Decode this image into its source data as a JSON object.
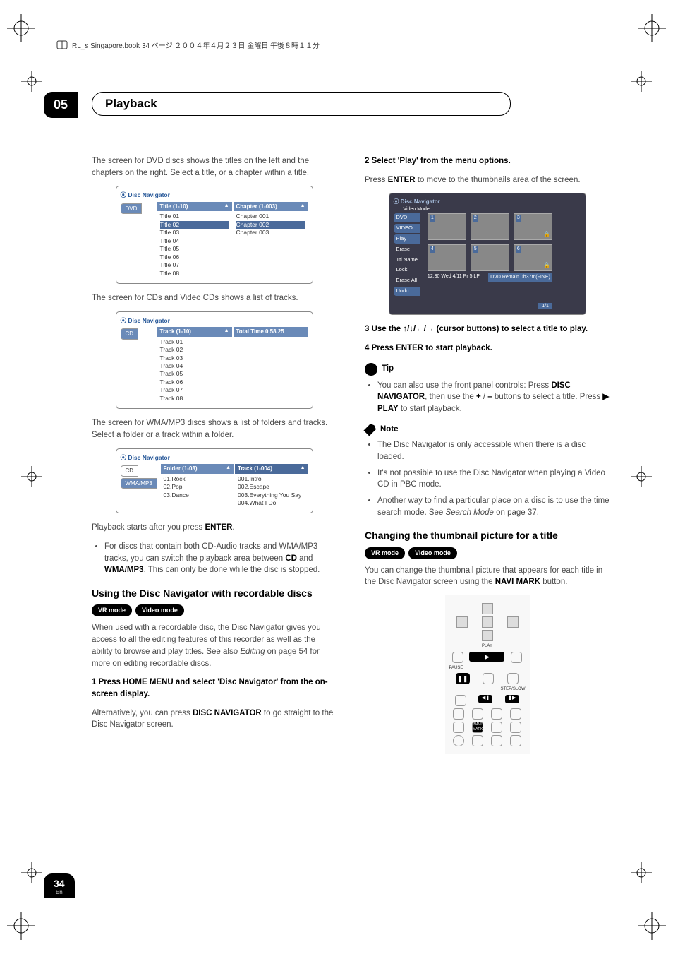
{
  "header": {
    "book_line": "RL_s Singapore.book 34 ページ ２００４年４月２３日 金曜日 午後８時１１分"
  },
  "chapter": {
    "num": "05",
    "title": "Playback"
  },
  "left": {
    "p1": "The screen for DVD discs shows the titles on the left and the chapters on the right. Select a title, or a chapter within a title.",
    "nav_dvd": {
      "label": "Disc Navigator",
      "col1_header": "Title (1-10)",
      "col2_header": "Chapter (1-003)",
      "tab": "DVD",
      "titles": [
        "Title 01",
        "Title 02",
        "Title 03",
        "Title 04",
        "Title 05",
        "Title 06",
        "Title 07",
        "Title 08"
      ],
      "chapters": [
        "Chapter 001",
        "Chapter 002",
        "Chapter 003"
      ]
    },
    "p2": "The screen for CDs and Video CDs shows a list of tracks.",
    "nav_cd": {
      "label": "Disc Navigator",
      "col1_header": "Track (1-10)",
      "col2_header": "Total Time 0.58.25",
      "tab": "CD",
      "tracks": [
        "Track 01",
        "Track 02",
        "Track 03",
        "Track 04",
        "Track 05",
        "Track 06",
        "Track 07",
        "Track 08"
      ]
    },
    "p3": "The screen for WMA/MP3 discs shows a list of folders and tracks. Select a folder or a track within a folder.",
    "nav_wma": {
      "label": "Disc Navigator",
      "col1_header": "Folder (1-03)",
      "col2_header": "Track (1-004)",
      "tab1": "CD",
      "tab2": "WMA/MP3",
      "folders": [
        "01.Rock",
        "02.Pop",
        "03.Dance"
      ],
      "tracks": [
        "001.Intro",
        "002.Escape",
        "003.Everything You Say",
        "004.What I Do"
      ]
    },
    "p4a": "Playback starts after you press ",
    "p4b": "ENTER",
    "p4c": ".",
    "bullet1a": "For discs that contain both CD-Audio tracks and WMA/MP3 tracks, you can switch the playback area between ",
    "bullet1b": "CD",
    "bullet1c": " and ",
    "bullet1d": "WMA/MP3",
    "bullet1e": ". This can only be done while the disc is stopped.",
    "h1": "Using the Disc Navigator with recordable discs",
    "badge1": "VR mode",
    "badge2": "Video mode",
    "p5a": "When used with a recordable disc, the Disc Navigator gives you access to all the editing features of this recorder as well as the ability to browse and play titles. See also ",
    "p5b": "Editing",
    "p5c": " on page 54 for more on editing recordable discs.",
    "step1_label": "1   Press HOME MENU and select 'Disc Navigator' from the on-screen display.",
    "p6a": "Alternatively, you can press ",
    "p6b": "DISC NAVIGATOR",
    "p6c": " to go straight to the Disc Navigator screen."
  },
  "right": {
    "step2_label": "2   Select 'Play' from the menu options.",
    "p1a": "Press ",
    "p1b": "ENTER",
    "p1c": " to move to the thumbnails area of the screen.",
    "thumb": {
      "label": "Disc Navigator",
      "mode": "Video Mode",
      "tabs": [
        "DVD",
        "VIDEO"
      ],
      "side": [
        "Play",
        "Erase",
        "Ttl Name",
        "Lock",
        "Erase All",
        "Undo"
      ],
      "status": "12:30 Wed 4/11  Pr 5  LP",
      "remain": "DVD Remain 0h37m(FINE)",
      "pager": "1/1"
    },
    "step3_a": "3   Use the ",
    "step3_b": " (cursor buttons) to select a title to play.",
    "step4": "4   Press ENTER to start playback.",
    "tip_label": "Tip",
    "tip1a": "You can also use the front panel controls: Press ",
    "tip1b": "DISC NAVIGATOR",
    "tip1c": ", then use the ",
    "tip1d": "+",
    "tip1e": " / ",
    "tip1f": "–",
    "tip1g": " buttons to select a title. Press ",
    "tip1h": "▶ PLAY",
    "tip1i": " to start playback.",
    "note_label": "Note",
    "note1": "The Disc Navigator is only accessible when there is a disc loaded.",
    "note2": "It's not possible to use the Disc Navigator when playing a Video CD in PBC mode.",
    "note3a": "Another way to find a particular place on a disc is to use the time search mode. See ",
    "note3b": "Search Mode",
    "note3c": " on page 37.",
    "h2": "Changing the thumbnail picture for a title",
    "badge1": "VR mode",
    "badge2": "Video mode",
    "p2a": "You can change the thumbnail picture that appears for each title in the Disc Navigator screen using the ",
    "p2b": "NAVI MARK",
    "p2c": " button.",
    "remote": {
      "play": "PLAY",
      "pause": "PAUSE",
      "step": "STEP/SLOW",
      "navi": "NAVI MARK"
    }
  },
  "footer": {
    "page": "34",
    "lang": "En"
  }
}
